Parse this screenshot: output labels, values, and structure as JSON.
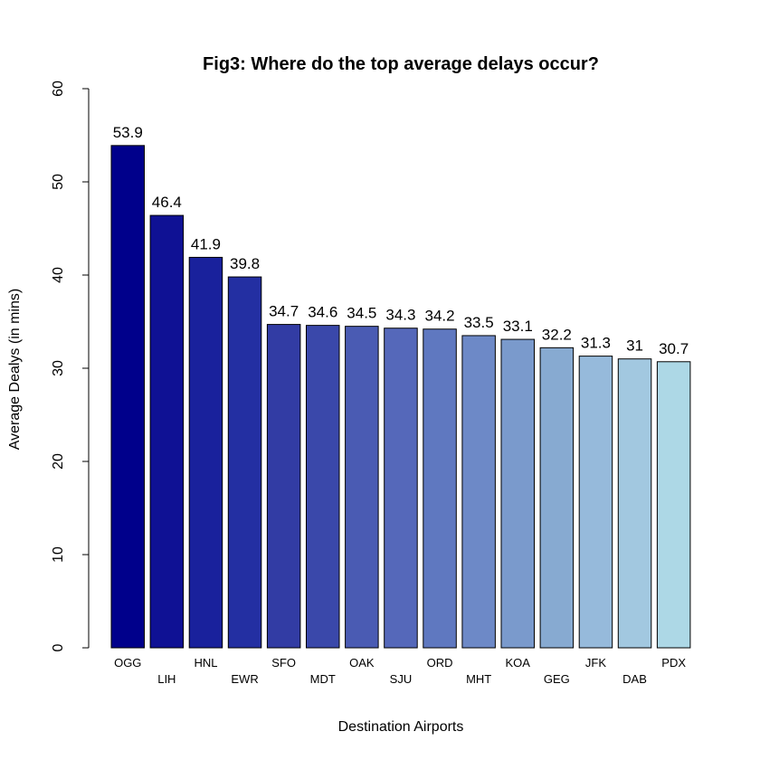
{
  "chart_data": {
    "type": "bar",
    "title": "Fig3: Where do the top average delays occur?",
    "xlabel": "Destination Airports",
    "ylabel": "Average Dealys (in mins)",
    "ylim": [
      0,
      60
    ],
    "yticks": [
      0,
      10,
      20,
      30,
      40,
      50,
      60
    ],
    "grid": false,
    "categories": [
      "OGG",
      "LIH",
      "HNL",
      "EWR",
      "SFO",
      "MDT",
      "OAK",
      "SJU",
      "ORD",
      "MHT",
      "KOA",
      "GEG",
      "JFK",
      "DAB",
      "PDX"
    ],
    "values": [
      53.9,
      46.4,
      41.9,
      39.8,
      34.7,
      34.6,
      34.5,
      34.3,
      34.2,
      33.5,
      33.1,
      32.2,
      31.3,
      31.0,
      30.7
    ],
    "data_labels": [
      "53.9",
      "46.4",
      "41.9",
      "39.8",
      "34.7",
      "34.6",
      "34.5",
      "34.3",
      "34.2",
      "33.5",
      "33.1",
      "32.2",
      "31.3",
      "31",
      "30.7"
    ],
    "colors": [
      "#00008B",
      "#0F1194",
      "#19219C",
      "#232FA2",
      "#323CA4",
      "#3A48AA",
      "#4A5BB3",
      "#5568BA",
      "#5F78C0",
      "#6D89C7",
      "#7A9ACC",
      "#87AAD1",
      "#96BADB",
      "#A2C8E0",
      "#ADD8E6"
    ]
  }
}
